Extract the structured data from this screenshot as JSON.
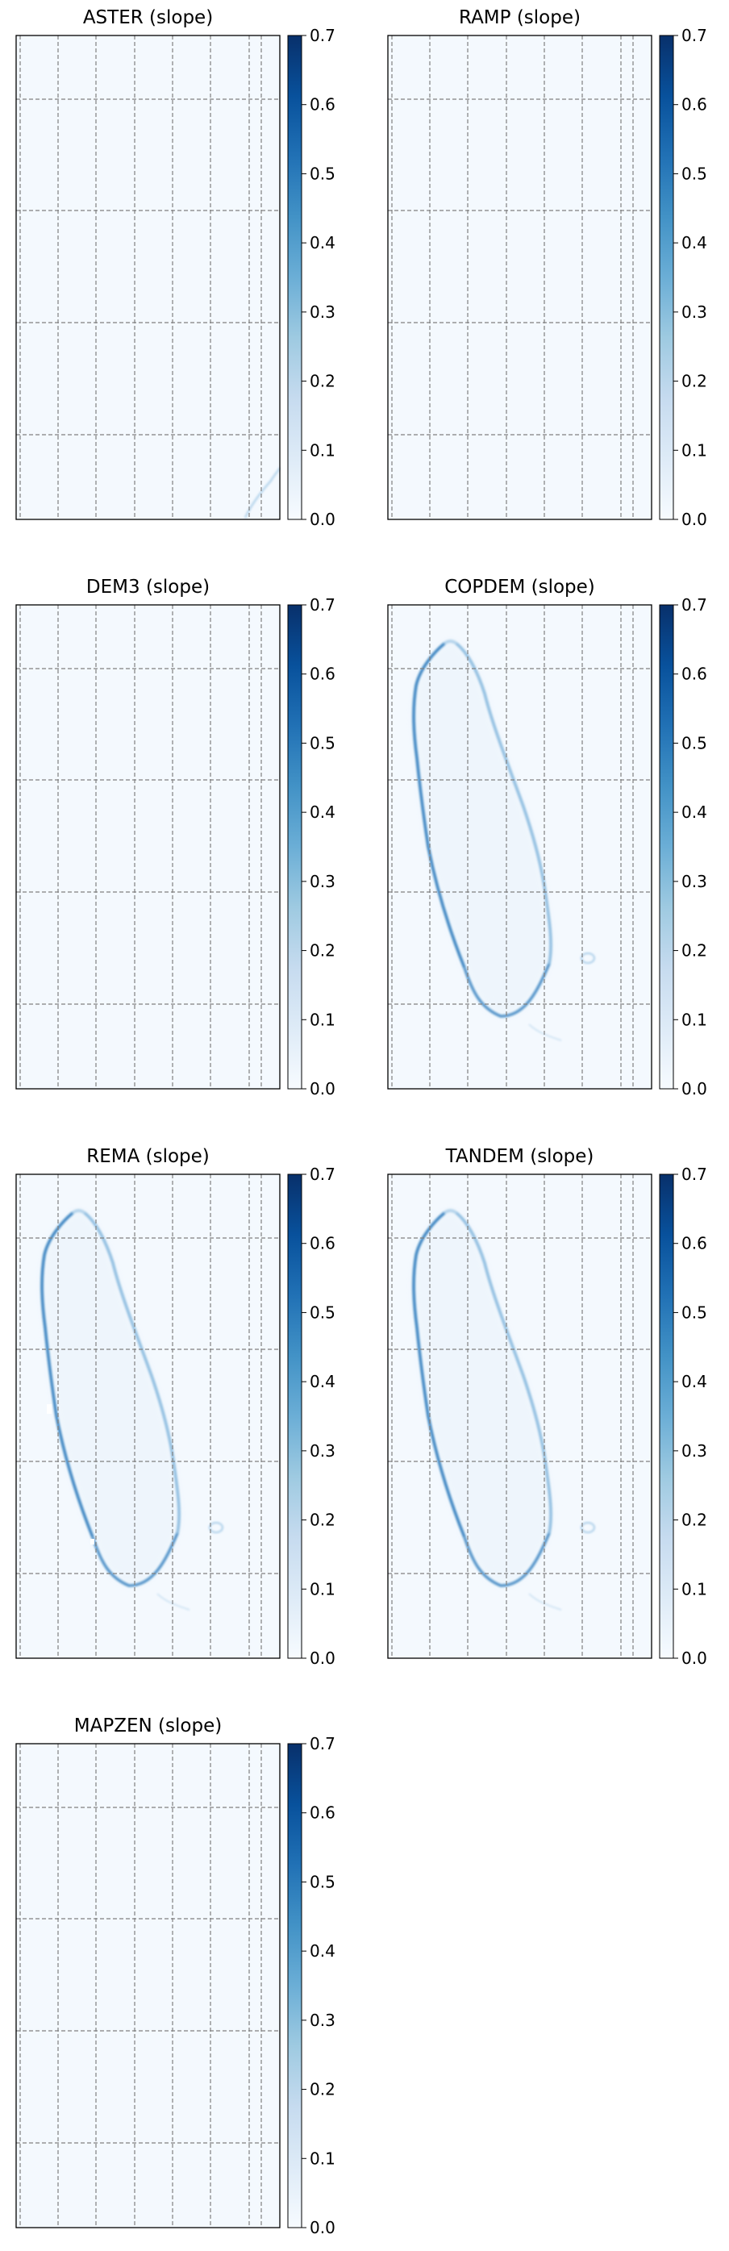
{
  "chart_data": [
    {
      "type": "heatmap",
      "title": "ASTER (slope)",
      "colormap": "Blues",
      "colorbar": {
        "vmin": 0.0,
        "vmax": 0.7,
        "ticks": [
          "0.0",
          "0.1",
          "0.2",
          "0.3",
          "0.4",
          "0.5",
          "0.6",
          "0.7"
        ]
      },
      "grid": "on",
      "content": "near-empty"
    },
    {
      "type": "heatmap",
      "title": "RAMP (slope)",
      "colormap": "Blues",
      "colorbar": {
        "vmin": 0.0,
        "vmax": 0.7,
        "ticks": [
          "0.0",
          "0.1",
          "0.2",
          "0.3",
          "0.4",
          "0.5",
          "0.6",
          "0.7"
        ]
      },
      "grid": "on",
      "content": "near-empty"
    },
    {
      "type": "heatmap",
      "title": "DEM3 (slope)",
      "colormap": "Blues",
      "colorbar": {
        "vmin": 0.0,
        "vmax": 0.7,
        "ticks": [
          "0.0",
          "0.1",
          "0.2",
          "0.3",
          "0.4",
          "0.5",
          "0.6",
          "0.7"
        ]
      },
      "grid": "on",
      "content": "near-empty"
    },
    {
      "type": "heatmap",
      "title": "COPDEM (slope)",
      "colormap": "Blues",
      "colorbar": {
        "vmin": 0.0,
        "vmax": 0.7,
        "ticks": [
          "0.0",
          "0.1",
          "0.2",
          "0.3",
          "0.4",
          "0.5",
          "0.6",
          "0.7"
        ]
      },
      "grid": "on",
      "content": "island-outline"
    },
    {
      "type": "heatmap",
      "title": "REMA (slope)",
      "colormap": "Blues",
      "colorbar": {
        "vmin": 0.0,
        "vmax": 0.7,
        "ticks": [
          "0.0",
          "0.1",
          "0.2",
          "0.3",
          "0.4",
          "0.5",
          "0.6",
          "0.7"
        ]
      },
      "grid": "on",
      "content": "island-outline"
    },
    {
      "type": "heatmap",
      "title": "TANDEM (slope)",
      "colormap": "Blues",
      "colorbar": {
        "vmin": 0.0,
        "vmax": 0.7,
        "ticks": [
          "0.0",
          "0.1",
          "0.2",
          "0.3",
          "0.4",
          "0.5",
          "0.6",
          "0.7"
        ]
      },
      "grid": "on",
      "content": "island-outline"
    },
    {
      "type": "heatmap",
      "title": "MAPZEN (slope)",
      "colormap": "Blues",
      "colorbar": {
        "vmin": 0.0,
        "vmax": 0.7,
        "ticks": [
          "0.0",
          "0.1",
          "0.2",
          "0.3",
          "0.4",
          "0.5",
          "0.6",
          "0.7"
        ]
      },
      "grid": "on",
      "content": "empty"
    }
  ],
  "colors": {
    "background": "#f4f9fe",
    "grid": "#808080",
    "edge_dark": "#1f6eb5",
    "edge_mid": "#6aa8d6",
    "cmap_low": "#f7fbff",
    "cmap_high": "#08306b"
  }
}
